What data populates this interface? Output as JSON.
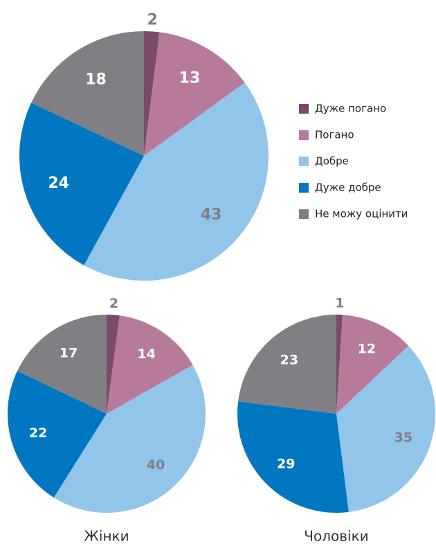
{
  "chart_data": [
    {
      "type": "pie",
      "categories": [
        "Дуже погано",
        "Погано",
        "Добре",
        "Дуже добре",
        "Не можу оцінити"
      ],
      "values": [
        2,
        13,
        43,
        24,
        18
      ],
      "colors": [
        "#7b4a6a",
        "#b87a9a",
        "#92c5ea",
        "#0077c0",
        "#7f7f84"
      ],
      "label_colors": [
        "#7f7f84",
        "#ffffff",
        "#7f7f84",
        "#ffffff",
        "#ffffff"
      ],
      "legend": "right"
    },
    {
      "type": "pie",
      "title": "Жінки",
      "values": [
        2,
        14,
        40,
        22,
        17
      ],
      "colors": [
        "#7b4a6a",
        "#b87a9a",
        "#92c5ea",
        "#0077c0",
        "#7f7f84"
      ],
      "label_colors": [
        "#7f7f84",
        "#ffffff",
        "#7f7f84",
        "#ffffff",
        "#ffffff"
      ]
    },
    {
      "type": "pie",
      "title": "Чоловіки",
      "values": [
        1,
        12,
        35,
        29,
        23
      ],
      "colors": [
        "#7b4a6a",
        "#b87a9a",
        "#92c5ea",
        "#0077c0",
        "#7f7f84"
      ],
      "label_colors": [
        "#7f7f84",
        "#ffffff",
        "#7f7f84",
        "#ffffff",
        "#ffffff"
      ]
    }
  ]
}
